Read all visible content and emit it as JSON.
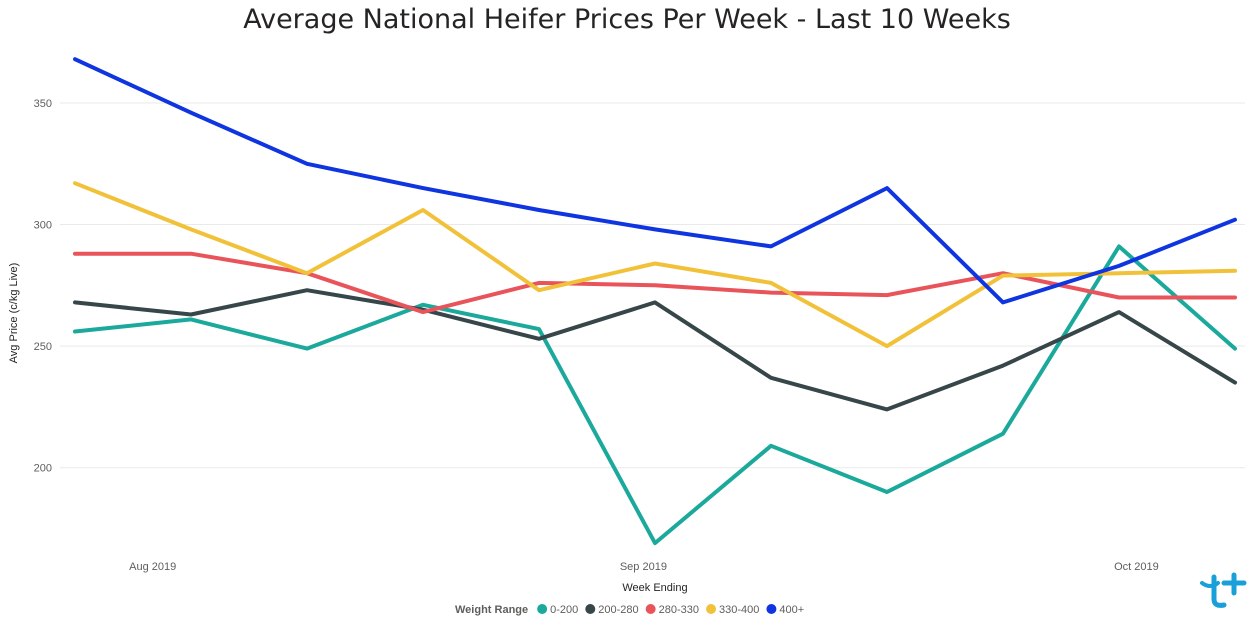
{
  "chart_data": {
    "type": "line",
    "title": "Average National Heifer Prices Per Week - Last 10 Weeks",
    "xlabel": "Week Ending",
    "ylabel": "Avg Price (c/kg Live)",
    "ylim": [
      160,
      380
    ],
    "y_ticks": [
      "350",
      "300",
      "250",
      "200"
    ],
    "y_tick_values": [
      350,
      300,
      250,
      200
    ],
    "x_tick_labels": [
      "Aug 2019",
      "Sep 2019",
      "Oct 2019"
    ],
    "x_tick_indices": [
      0.67,
      4.9,
      9.15
    ],
    "n_points": 11,
    "grid": true,
    "legend": {
      "title": "Weight Range",
      "placement": "bottom-center"
    },
    "series": [
      {
        "name": "0-200",
        "color": "#1aa99b",
        "values": [
          256,
          261,
          249,
          267,
          257,
          169,
          209,
          190,
          214,
          291,
          249
        ]
      },
      {
        "name": "200-280",
        "color": "#374649",
        "values": [
          268,
          263,
          273,
          265,
          253,
          268,
          237,
          224,
          242,
          264,
          235
        ]
      },
      {
        "name": "280-330",
        "color": "#e8545a",
        "values": [
          288,
          288,
          280,
          264,
          276,
          275,
          272,
          271,
          280,
          270,
          270
        ]
      },
      {
        "name": "330-400",
        "color": "#f2c13a",
        "values": [
          317,
          298,
          280,
          306,
          273,
          284,
          276,
          250,
          279,
          280,
          281
        ]
      },
      {
        "name": "400+",
        "color": "#0f35e0",
        "values": [
          368,
          346,
          325,
          315,
          306,
          298,
          291,
          315,
          268,
          283,
          302
        ]
      }
    ]
  }
}
